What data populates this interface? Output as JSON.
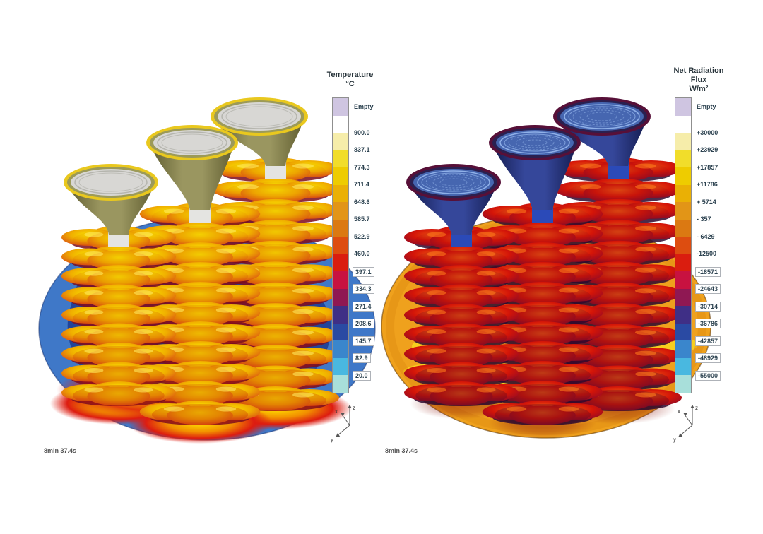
{
  "chart_data": [
    {
      "type": "heatmap",
      "title": "Temperature",
      "units": "°C",
      "legend_ticks": [
        "Empty",
        "900.0",
        "837.1",
        "774.3",
        "711.4",
        "648.6",
        "585.7",
        "522.9",
        "460.0",
        "397.1",
        "334.3",
        "271.4",
        "208.6",
        "145.7",
        "82.9",
        "20.0"
      ],
      "range": [
        20.0,
        900.0
      ],
      "time_label": "8min 37.4s",
      "subject": "3D render of three casting trees (stacked clover-shaped molds with pouring funnels) on a circular plate, colored by temperature; molds glow yellow-red hot, plate is cold blue"
    },
    {
      "type": "heatmap",
      "title": "Net Radiation Flux",
      "units": "W/m²",
      "legend_ticks": [
        "Empty",
        "+30000",
        "+23929",
        "+17857",
        "+11786",
        "+ 5714",
        "- 357",
        "- 6429",
        "-12500",
        "-18571",
        "-24643",
        "-30714",
        "-36786",
        "-42857",
        "-48929",
        "-55000"
      ],
      "range": [
        -55000,
        30000
      ],
      "time_label": "8min 37.4s",
      "subject": "Same casting tree geometry colored by net radiation flux; mold discs deep red, funnels dark blue, plate orange-yellow"
    }
  ],
  "left_panel": {
    "legend_title": "Temperature\n°C",
    "timestamp": "8min 37.4s",
    "axis_labels": {
      "x": "x",
      "y": "y",
      "z": "z"
    },
    "bands": [
      {
        "color": "#cfc5e1",
        "label": "Empty",
        "label_pos": "center"
      },
      {
        "color": "#ffffff",
        "label": "900.0"
      },
      {
        "color": "#f6edaa",
        "label": "837.1"
      },
      {
        "color": "#f1dd2a",
        "label": "774.3"
      },
      {
        "color": "#eecc00",
        "label": "711.4"
      },
      {
        "color": "#eab005",
        "label": "648.6"
      },
      {
        "color": "#e29517",
        "label": "585.7"
      },
      {
        "color": "#db7912",
        "label": "522.9"
      },
      {
        "color": "#dd4d10",
        "label": "460.0"
      },
      {
        "color": "#da1d0f",
        "label": "397.1",
        "boxed": true
      },
      {
        "color": "#c81240",
        "label": "334.3",
        "boxed": true
      },
      {
        "color": "#8f1853",
        "label": "271.4",
        "boxed": true
      },
      {
        "color": "#3f2f86",
        "label": "208.6",
        "boxed": true
      },
      {
        "color": "#2a4aa3",
        "label": "145.7",
        "boxed": true
      },
      {
        "color": "#3a86cc",
        "label": "82.9",
        "boxed": true
      },
      {
        "color": "#49b8e0",
        "label": "20.0",
        "boxed": true
      },
      {
        "color": "#a8dfda"
      }
    ],
    "palette": {
      "plate": "#3f78c8",
      "plate_outline": "rgba(20,45,110,0.5)",
      "contour_navy": "#1c3b92",
      "contour_purple": "#3a2f90",
      "contour_deep": "#142e7a",
      "glow_core": "#ffe400",
      "glow_mid": "#f29000",
      "glow_red": "#dd1c10",
      "disc_center": "#f8e000",
      "disc_mid": "#f0ae00",
      "disc_hot": "#e06a0e",
      "disc_edge": "#cf1d10",
      "disc_shadow": "#7a0d20",
      "disc_tint": "#c01208",
      "disc_glint": "#ffe95e",
      "stem": "#d9d9d9",
      "stem_light": "#f2f2ef",
      "funnel_body": "#9a9660",
      "funnel_body_dark": "#5f5c30",
      "funnel_rim": "#e9c81e",
      "funnel_rim_inner": "#9c9a58",
      "funnel_interior": "#d8d7d4",
      "funnel_ring": "#b5b5ae",
      "funnel_base": "#e4e4e1"
    }
  },
  "right_panel": {
    "legend_title": "Net Radiation\nFlux\nW/m²",
    "timestamp": "8min 37.4s",
    "axis_labels": {
      "x": "x",
      "y": "y",
      "z": "z"
    },
    "bands": [
      {
        "color": "#cfc5e1",
        "label": "Empty",
        "label_pos": "center"
      },
      {
        "color": "#ffffff",
        "label": "+30000"
      },
      {
        "color": "#f6edaa",
        "label": "+23929"
      },
      {
        "color": "#f1dd2a",
        "label": "+17857"
      },
      {
        "color": "#eecc00",
        "label": "+11786"
      },
      {
        "color": "#eab005",
        "label": "+ 5714"
      },
      {
        "color": "#e29517",
        "label": "- 357"
      },
      {
        "color": "#db7912",
        "label": "- 6429"
      },
      {
        "color": "#dd4d10",
        "label": "-12500"
      },
      {
        "color": "#da1d0f",
        "label": "-18571",
        "boxed": true
      },
      {
        "color": "#c81240",
        "label": "-24643",
        "boxed": true
      },
      {
        "color": "#8f1853",
        "label": "-30714",
        "boxed": true
      },
      {
        "color": "#3f2f86",
        "label": "-36786",
        "boxed": true
      },
      {
        "color": "#2a4aa3",
        "label": "-42857",
        "boxed": true
      },
      {
        "color": "#3a86cc",
        "label": "-48929",
        "boxed": true
      },
      {
        "color": "#49b8e0",
        "label": "-55000",
        "boxed": true
      },
      {
        "color": "#a8dfda"
      }
    ],
    "palette": {
      "plate": "#efa11d",
      "plate_outline": "rgba(95,55,6,0.55)",
      "plate_blotch": "#f7d41f",
      "plate_edge_band": "#dd8c12",
      "glow_core": "rgba(140,20,10,0.5)",
      "glow_mid": "rgba(140,20,10,0.3)",
      "glow_red": "rgba(140,20,10,0)",
      "disc_center": "#e84a10",
      "disc_mid": "#d41508",
      "disc_hot": "#a50d1d",
      "disc_edge": "#58103c",
      "disc_shadow": "#2e0a30",
      "disc_tint": "#33082a",
      "disc_glint": "#ff7a1a",
      "stem": "#2b3f94",
      "stem_light": "#5272cc",
      "funnel_body": "#35479a",
      "funnel_body_dark": "#141b4e",
      "funnel_rim": "#571038",
      "funnel_rim_inner": "#2a2050",
      "funnel_interior": "#4666b0",
      "funnel_ring": "#8fb0e8",
      "funnel_base": "#2b4ab8"
    }
  }
}
